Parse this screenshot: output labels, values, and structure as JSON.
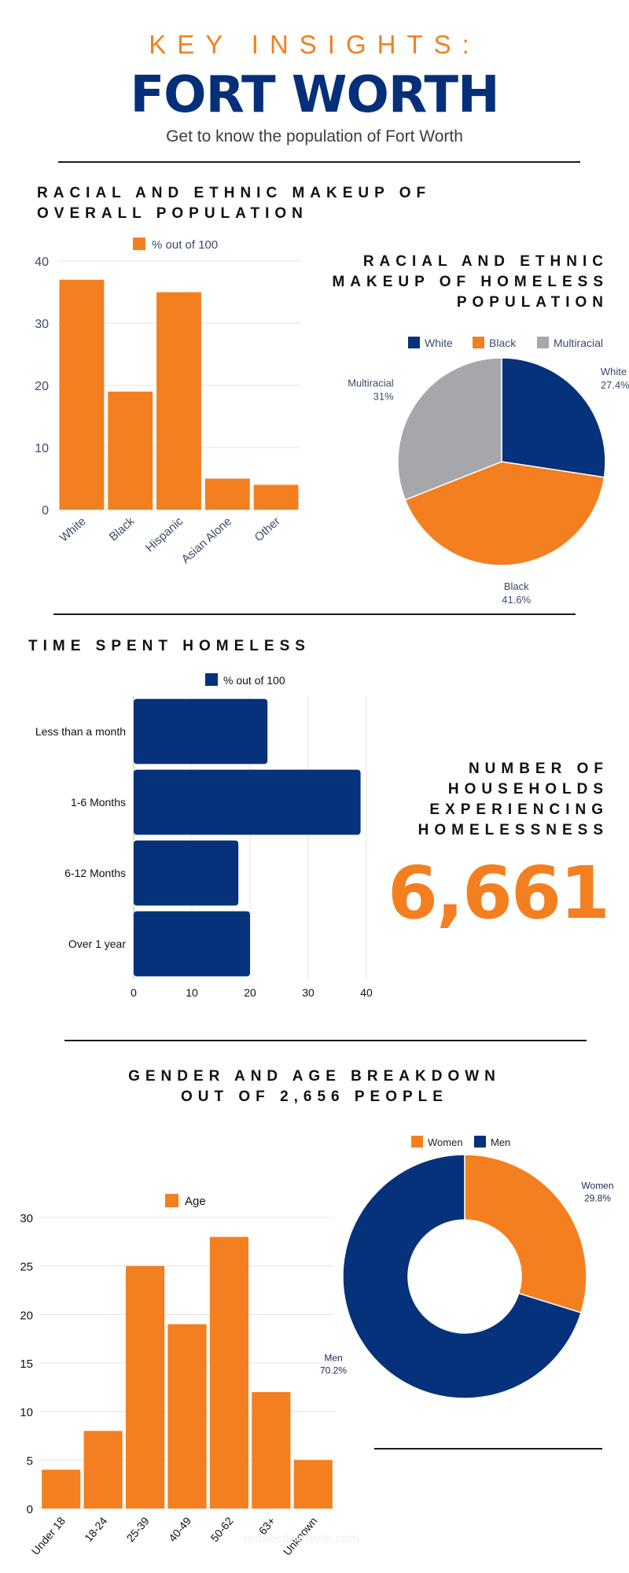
{
  "header": {
    "kicker": "KEY INSIGHTS:",
    "title": "FORT WORTH",
    "subtitle": "Get to know the population of Fort Worth"
  },
  "sections": {
    "racial_overall_line1": "RACIAL AND ETHNIC MAKEUP OF",
    "racial_overall_line2": "OVERALL POPULATION",
    "racial_homeless_line1": "RACIAL AND ETHNIC",
    "racial_homeless_line2": "MAKEUP OF HOMELESS",
    "racial_homeless_line3": "POPULATION",
    "time_homeless": "TIME SPENT HOMELESS",
    "households_line1": "NUMBER OF",
    "households_line2": "HOUSEHOLDS",
    "households_line3": "EXPERIENCING",
    "households_line4": "HOMELESSNESS",
    "households_value": "6,661",
    "gender_age_line1": "GENDER AND AGE BREAKDOWN",
    "gender_age_line2": "OUT OF 2,656 PEOPLE"
  },
  "watermark": "redseedwebsite.com",
  "colors": {
    "orange": "#f47f20",
    "navy": "#06317b",
    "gray": "#a5a7aa",
    "axis_text": "#3b4a6b",
    "grid": "#e3e3e3"
  },
  "chart_data": [
    {
      "id": "overall",
      "type": "bar",
      "legend": "% out of 100",
      "categories": [
        "White",
        "Black",
        "Hispanic",
        "Asian Alone",
        "Other"
      ],
      "values": [
        37,
        19,
        35,
        5,
        4
      ],
      "ylim": [
        0,
        40
      ],
      "yticks": [
        0,
        10,
        20,
        30,
        40
      ],
      "color": "orange"
    },
    {
      "id": "homeless_race",
      "type": "pie",
      "legend": [
        "White",
        "Black",
        "Multiracial"
      ],
      "labels": [
        "White",
        "Black",
        "Multiracial"
      ],
      "values": [
        27.4,
        41.6,
        31
      ],
      "value_labels": [
        "27.4%",
        "41.6%",
        "31%"
      ],
      "colors": [
        "navy",
        "orange",
        "gray"
      ]
    },
    {
      "id": "time_homeless",
      "type": "bar",
      "orientation": "horizontal",
      "legend": "% out of 100",
      "categories": [
        "Less than a month",
        "1-6 Months",
        "6-12 Months",
        "Over 1 year"
      ],
      "values": [
        23,
        39,
        18,
        20
      ],
      "xlim": [
        0,
        40
      ],
      "xticks": [
        0,
        10,
        20,
        30,
        40
      ],
      "color": "navy"
    },
    {
      "id": "age",
      "type": "bar",
      "legend": "Age",
      "categories": [
        "Under 18",
        "18-24",
        "25-39",
        "40-49",
        "50-62",
        "63+",
        "Unknown"
      ],
      "values": [
        4,
        8,
        25,
        19,
        28,
        12,
        5
      ],
      "ylim": [
        0,
        30
      ],
      "yticks": [
        0,
        5,
        10,
        15,
        20,
        25,
        30
      ],
      "color": "orange"
    },
    {
      "id": "gender",
      "type": "pie",
      "donut": true,
      "legend": [
        "Women",
        "Men"
      ],
      "labels": [
        "Women",
        "Men"
      ],
      "values": [
        29.8,
        70.2
      ],
      "value_labels": [
        "29.8%",
        "70.2%"
      ],
      "colors": [
        "orange",
        "navy"
      ]
    }
  ]
}
